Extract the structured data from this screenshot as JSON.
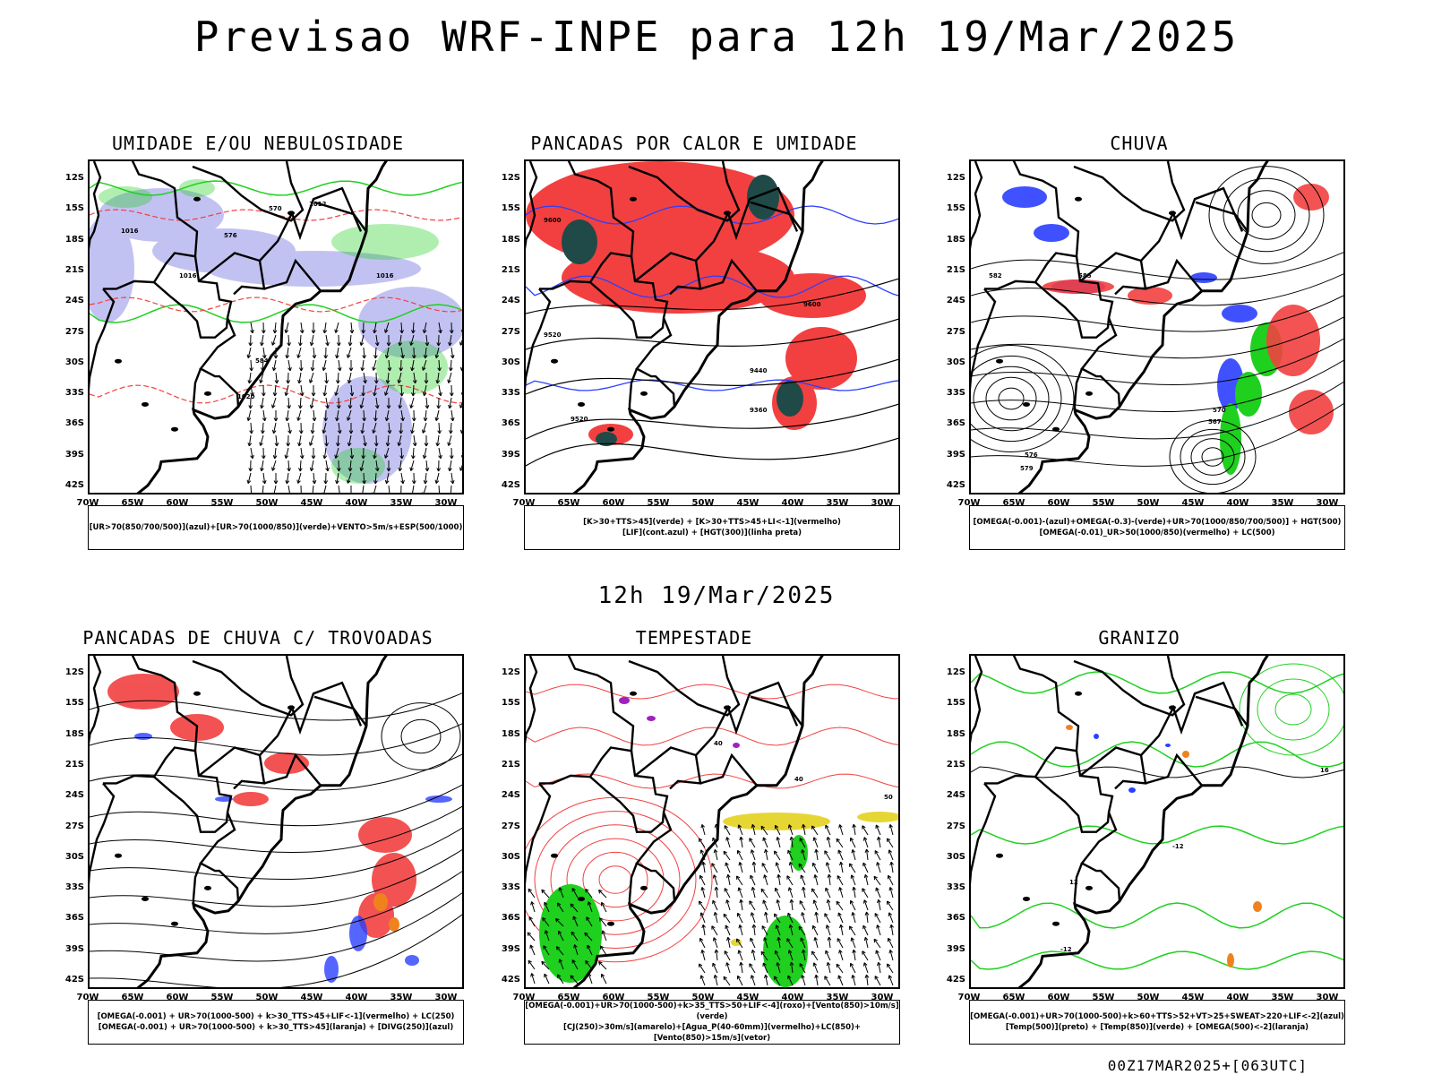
{
  "title": "Previsao WRF-INPE  para 12h 19/Mar/2025",
  "mid_title": "12h 19/Mar/2025",
  "footer": "00Z17MAR2025+[063UTC]",
  "axes": {
    "lat_labels": [
      "12S",
      "15S",
      "18S",
      "21S",
      "24S",
      "27S",
      "30S",
      "33S",
      "36S",
      "39S",
      "42S"
    ],
    "lon_labels": [
      "70W",
      "65W",
      "60W",
      "55W",
      "50W",
      "45W",
      "40W",
      "35W",
      "30W"
    ]
  },
  "colors": {
    "blue": "#2b3fff",
    "green": "#1fd01f",
    "red": "#f24040",
    "dark_teal": "#1f4a48",
    "lavender": "#b8b8f0",
    "yellow": "#e6d634",
    "orange": "#f0821e",
    "purple": "#a020c0"
  },
  "panels": [
    {
      "title": "UMIDADE E/OU NEBULOSIDADE",
      "legend": [
        "[UR>70(850/700/500)](azul)+[UR>70(1000/850)](verde)+VENTO>5m/s+ESP(500/1000)"
      ],
      "contour_labels": [
        "1012",
        "1016",
        "1016",
        "1016",
        "1020",
        "570",
        "576",
        "584"
      ]
    },
    {
      "title": "PANCADAS POR CALOR E UMIDADE",
      "legend": [
        "[K>30+TTS>45](verde) + [K>30+TTS>45+LI<-1](vermelho)",
        "[LIF](cont.azul) + [HGT(300)](linha preta)"
      ],
      "contour_labels": [
        "9600",
        "9520",
        "9440",
        "9360",
        "9520",
        "9600"
      ]
    },
    {
      "title": "CHUVA",
      "legend": [
        "[OMEGA(-0.001)-(azul)+OMEGA(-0.3)-(verde)+UR>70(1000/850/700/500)] + HGT(500)",
        "[OMEGA(-0.01)_UR>50(1000/850)(vermelho) + LC(500)"
      ],
      "contour_labels": [
        "582",
        "585",
        "570",
        "567",
        "579",
        "576"
      ]
    },
    {
      "title": "PANCADAS DE CHUVA C/ TROVOADAS",
      "legend": [
        "[OMEGA(-0.001) + UR>70(1000-500) + k>30_TTS>45+LIF<-1](vermelho) + LC(250)",
        "[OMEGA(-0.001) + UR>70(1000-500) + k>30_TTS>45](laranja) + [DIVG(250)](azul)"
      ],
      "contour_labels": []
    },
    {
      "title": "TEMPESTADE",
      "legend": [
        "[OMEGA(-0.001)+UR>70(1000-500)+k>35_TTS>50+LIF<-4](roxo)+[Vento(850)>10m/s](verde)",
        "[CJ(250)>30m/s](amarelo)+[Agua_P(40-60mm)](vermelho)+LC(850)+[Vento(850)>15m/s](vetor)"
      ],
      "contour_labels": [
        "40",
        "40",
        "50"
      ]
    },
    {
      "title": "GRANIZO",
      "legend": [
        "[OMEGA(-0.001)+UR>70(1000-500)+k>60+TTS>52+VT>25+SWEAT>220+LIF<-2](azul)",
        "[Temp(500)](preto) + [Temp(850)](verde) + [OMEGA(500)<-2](laranja)"
      ],
      "contour_labels": [
        "-12",
        "-12",
        "12",
        "16"
      ]
    }
  ]
}
